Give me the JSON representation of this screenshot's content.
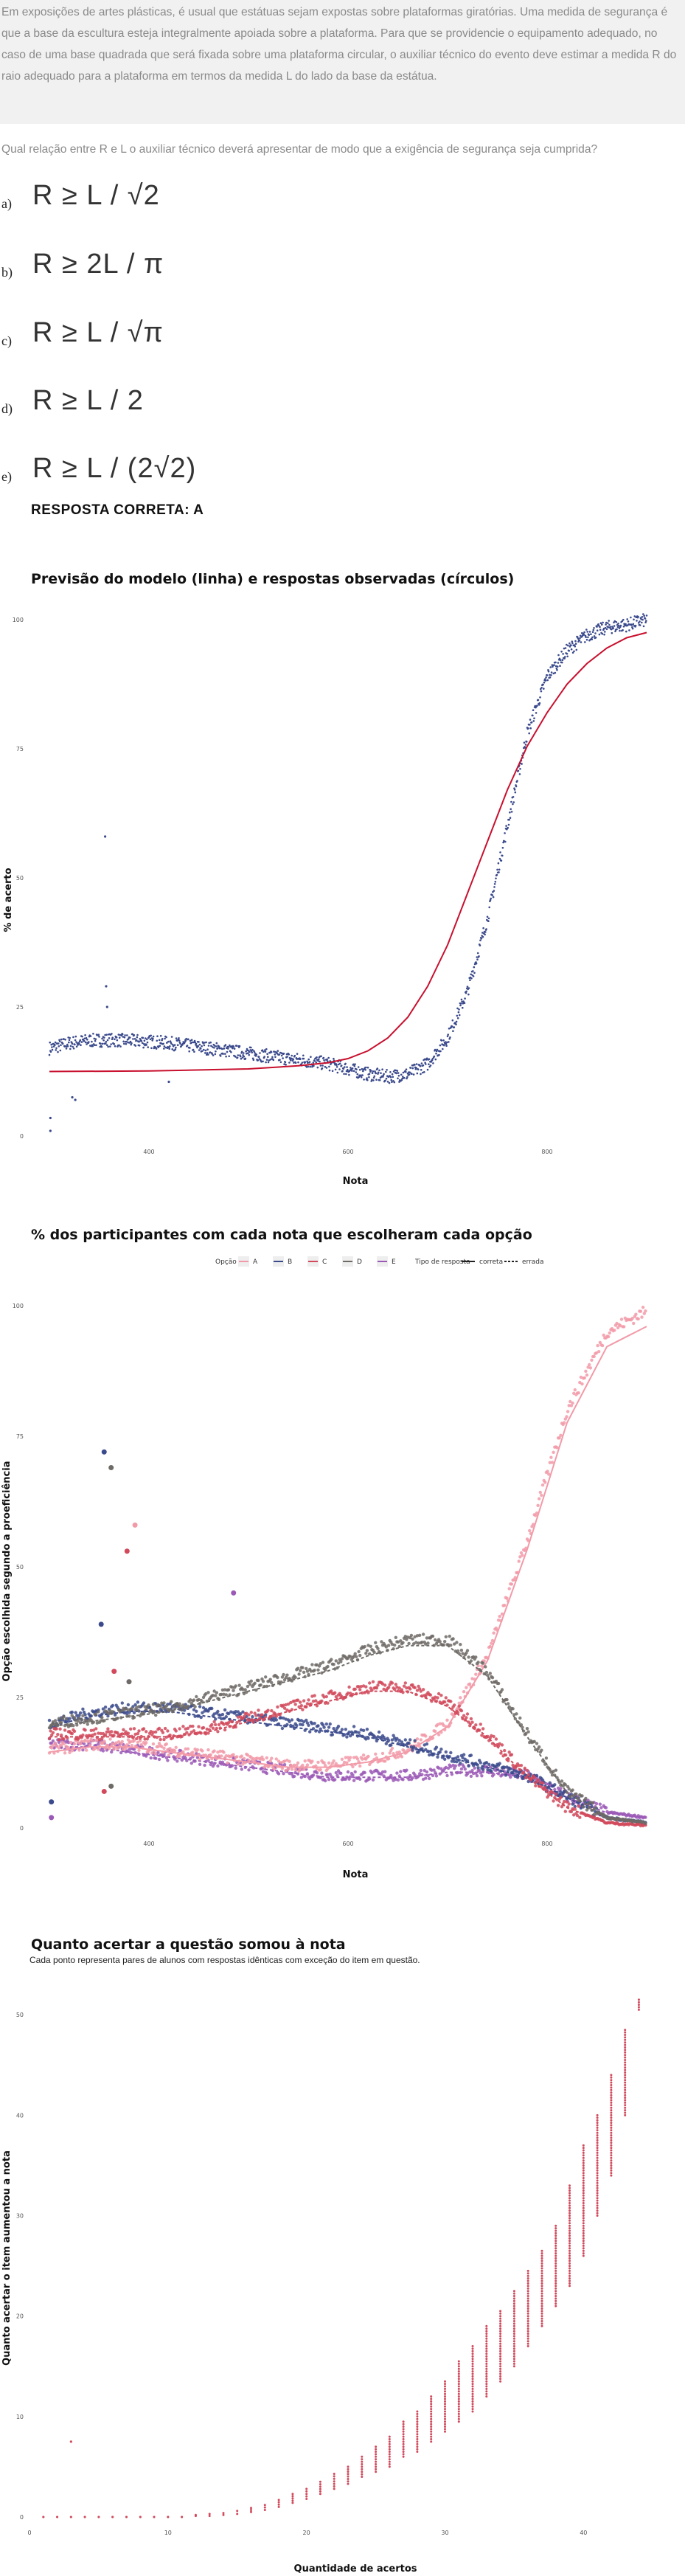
{
  "question": {
    "text": "Em exposições de artes plásticas, é usual que estátuas sejam expostas sobre plataformas giratórias. Uma medida de segurança é que a base da escultura esteja integralmente apoiada sobre a plataforma. Para que se providencie o equipamento adequado, no caso de uma base quadrada que será fixada sobre uma plataforma circular, o auxiliar técnico do evento deve estimar a medida R do raio adequado para a plataforma em termos da medida L do lado da base da estátua.",
    "prompt": "Qual relação entre R e L o auxiliar técnico deverá apresentar de modo que a exigência de segurança seja cumprida?"
  },
  "alternatives": [
    {
      "letter": "a)",
      "expression": "R ≥ L / √2"
    },
    {
      "letter": "b)",
      "expression": "R ≥ 2L / π"
    },
    {
      "letter": "c)",
      "expression": "R ≥ L / √π"
    },
    {
      "letter": "d)",
      "expression": "R ≥ L / 2"
    },
    {
      "letter": "e)",
      "expression": "R ≥ L / (2√2)"
    }
  ],
  "answer": "RESPOSTA CORRETA: A",
  "colors": {
    "model_line": "#c8102e",
    "observed_points": "#3b4a8c",
    "option_A": "#f29aa8",
    "option_B": "#3b4a8c",
    "option_C": "#d1495b",
    "option_D": "#6e6a66",
    "option_E": "#9b59b6",
    "gain_points": "#d1495b"
  },
  "charts": [
    {
      "title": "Previsão do modelo (linha) e respostas observadas (círculos)",
      "xlabel": "Nota",
      "ylabel": "% de acerto",
      "xticks": [
        "400",
        "600",
        "800"
      ],
      "yticks": [
        "0",
        "25",
        "50",
        "75",
        "100"
      ]
    },
    {
      "title": "% dos participantes com cada nota que escolheram cada opção",
      "xlabel": "Nota",
      "ylabel": "Opção escolhida segundo a proeficiência",
      "xticks": [
        "400",
        "600",
        "800"
      ],
      "yticks": [
        "0",
        "25",
        "50",
        "75",
        "100"
      ],
      "legend": {
        "option_title": "Opção",
        "options": [
          "A",
          "B",
          "C",
          "D",
          "E"
        ],
        "type_title": "Tipo de resposta",
        "types": [
          "correta",
          "errada"
        ]
      }
    },
    {
      "title": "Quanto acertar a questão somou à nota",
      "subtitle": "Cada ponto representa pares de alunos com respostas idênticas com exceção do item em questão.",
      "xlabel": "Quantidade de acertos",
      "ylabel": "Quanto acertar o item aumentou a nota",
      "xticks": [
        "0",
        "10",
        "20",
        "30",
        "40"
      ],
      "yticks": [
        "0",
        "10",
        "20",
        "30",
        "40",
        "50"
      ]
    }
  ],
  "chart_data": [
    {
      "type": "scatter",
      "title": "Previsão do modelo (linha) e respostas observadas (círculos)",
      "xlabel": "Nota",
      "ylabel": "% de acerto",
      "xlim": [
        280,
        920
      ],
      "ylim": [
        0,
        100
      ],
      "grid": false,
      "series": [
        {
          "name": "Previsão do modelo",
          "kind": "line",
          "x": [
            300,
            400,
            500,
            550,
            580,
            600,
            620,
            640,
            660,
            680,
            700,
            720,
            740,
            760,
            780,
            800,
            820,
            840,
            860,
            880,
            900
          ],
          "y": [
            12.5,
            12.6,
            13.0,
            13.6,
            14.2,
            15.0,
            16.5,
            19.0,
            23.0,
            29.0,
            37.0,
            47.0,
            57.0,
            67.0,
            75.5,
            82.0,
            87.5,
            91.5,
            94.5,
            96.5,
            97.5
          ]
        },
        {
          "name": "Respostas observadas",
          "kind": "points",
          "x": [
            300,
            320,
            340,
            360,
            380,
            400,
            420,
            440,
            460,
            480,
            500,
            520,
            540,
            560,
            580,
            600,
            620,
            640,
            660,
            680,
            700,
            720,
            740,
            760,
            780,
            800,
            820,
            840,
            860,
            880,
            900
          ],
          "y": [
            17.0,
            18.0,
            18.5,
            18.6,
            18.5,
            18.3,
            18.0,
            17.5,
            17.0,
            16.5,
            16.0,
            15.5,
            15.0,
            14.5,
            14.0,
            13.0,
            12.0,
            11.5,
            12.0,
            14.0,
            19.0,
            28.0,
            42.0,
            60.0,
            78.0,
            89.0,
            94.0,
            97.0,
            98.5,
            99.0,
            100.0
          ]
        },
        {
          "name": "outliers",
          "kind": "points",
          "x": [
            301,
            301,
            323,
            326,
            356,
            357,
            358,
            420
          ],
          "y": [
            1.0,
            3.5,
            7.5,
            7.0,
            58.0,
            29.0,
            25.0,
            10.5
          ]
        }
      ]
    },
    {
      "type": "scatter",
      "title": "% dos participantes com cada nota que escolheram cada opção",
      "xlabel": "Nota",
      "ylabel": "Opção escolhida segundo a proeficiência",
      "xlim": [
        280,
        920
      ],
      "ylim": [
        0,
        100
      ],
      "legend": "top-center",
      "x": [
        300,
        340,
        380,
        420,
        460,
        500,
        540,
        580,
        620,
        660,
        700,
        740,
        780,
        820,
        860,
        900
      ],
      "series": [
        {
          "name": "A",
          "values": [
            15,
            16,
            16,
            15,
            14,
            13,
            12,
            12,
            13,
            15,
            20,
            33,
            55,
            80,
            95,
            99
          ]
        },
        {
          "name": "B",
          "values": [
            20,
            22,
            23,
            23,
            22,
            21,
            20,
            19,
            18,
            16,
            14,
            12,
            10,
            6,
            2,
            1
          ]
        },
        {
          "name": "C",
          "values": [
            18,
            18,
            18,
            18,
            19,
            21,
            23,
            25,
            27,
            27,
            24,
            18,
            10,
            4,
            1,
            0.5
          ]
        },
        {
          "name": "D",
          "values": [
            20,
            21,
            22,
            23,
            25,
            27,
            29,
            31,
            34,
            36,
            36,
            30,
            18,
            7,
            2,
            1
          ]
        },
        {
          "name": "E",
          "values": [
            16,
            16,
            15,
            14,
            13,
            12,
            11,
            10,
            10,
            10,
            11,
            11,
            10,
            6,
            3,
            2
          ]
        }
      ]
    },
    {
      "type": "scatter",
      "title": "Quanto acertar a questão somou à nota",
      "subtitle": "Cada ponto representa pares de alunos com respostas idênticas com exceção do item em questão.",
      "xlabel": "Quantidade de acertos",
      "ylabel": "Quanto acertar o item aumentou a nota",
      "xlim": [
        0,
        46
      ],
      "ylim": [
        0,
        52
      ],
      "x": [
        1,
        2,
        3,
        4,
        5,
        6,
        7,
        8,
        9,
        10,
        11,
        12,
        13,
        14,
        15,
        16,
        17,
        18,
        19,
        20,
        21,
        22,
        23,
        24,
        25,
        26,
        27,
        28,
        29,
        30,
        31,
        32,
        33,
        34,
        35,
        36,
        37,
        38,
        39,
        40,
        41,
        42,
        43,
        44
      ],
      "ymin": [
        0,
        0,
        0,
        0,
        0,
        0,
        0,
        0,
        0,
        0,
        0,
        0.1,
        0.1,
        0.2,
        0.3,
        0.5,
        0.7,
        1.0,
        1.4,
        1.8,
        2.3,
        2.8,
        3.3,
        4.0,
        4.5,
        5.0,
        6.0,
        6.5,
        7.5,
        8.5,
        9.5,
        10.5,
        12.0,
        13.5,
        15.0,
        17.0,
        19.0,
        21.0,
        23.0,
        26.0,
        30.0,
        34.0,
        40.0,
        50.5
      ],
      "ymax": [
        0,
        0,
        0,
        0,
        0,
        0,
        0,
        0,
        0,
        0,
        0,
        0.2,
        0.3,
        0.4,
        0.6,
        0.9,
        1.2,
        1.7,
        2.3,
        2.8,
        3.5,
        4.3,
        5.0,
        6.0,
        7.0,
        8.0,
        9.5,
        10.5,
        12.0,
        13.5,
        15.5,
        17.0,
        19.0,
        20.5,
        22.5,
        24.5,
        26.5,
        29.0,
        33.0,
        37.0,
        40.0,
        44.0,
        48.5,
        51.5
      ],
      "outliers": [
        {
          "x": 3,
          "y": 7.5
        }
      ]
    }
  ]
}
